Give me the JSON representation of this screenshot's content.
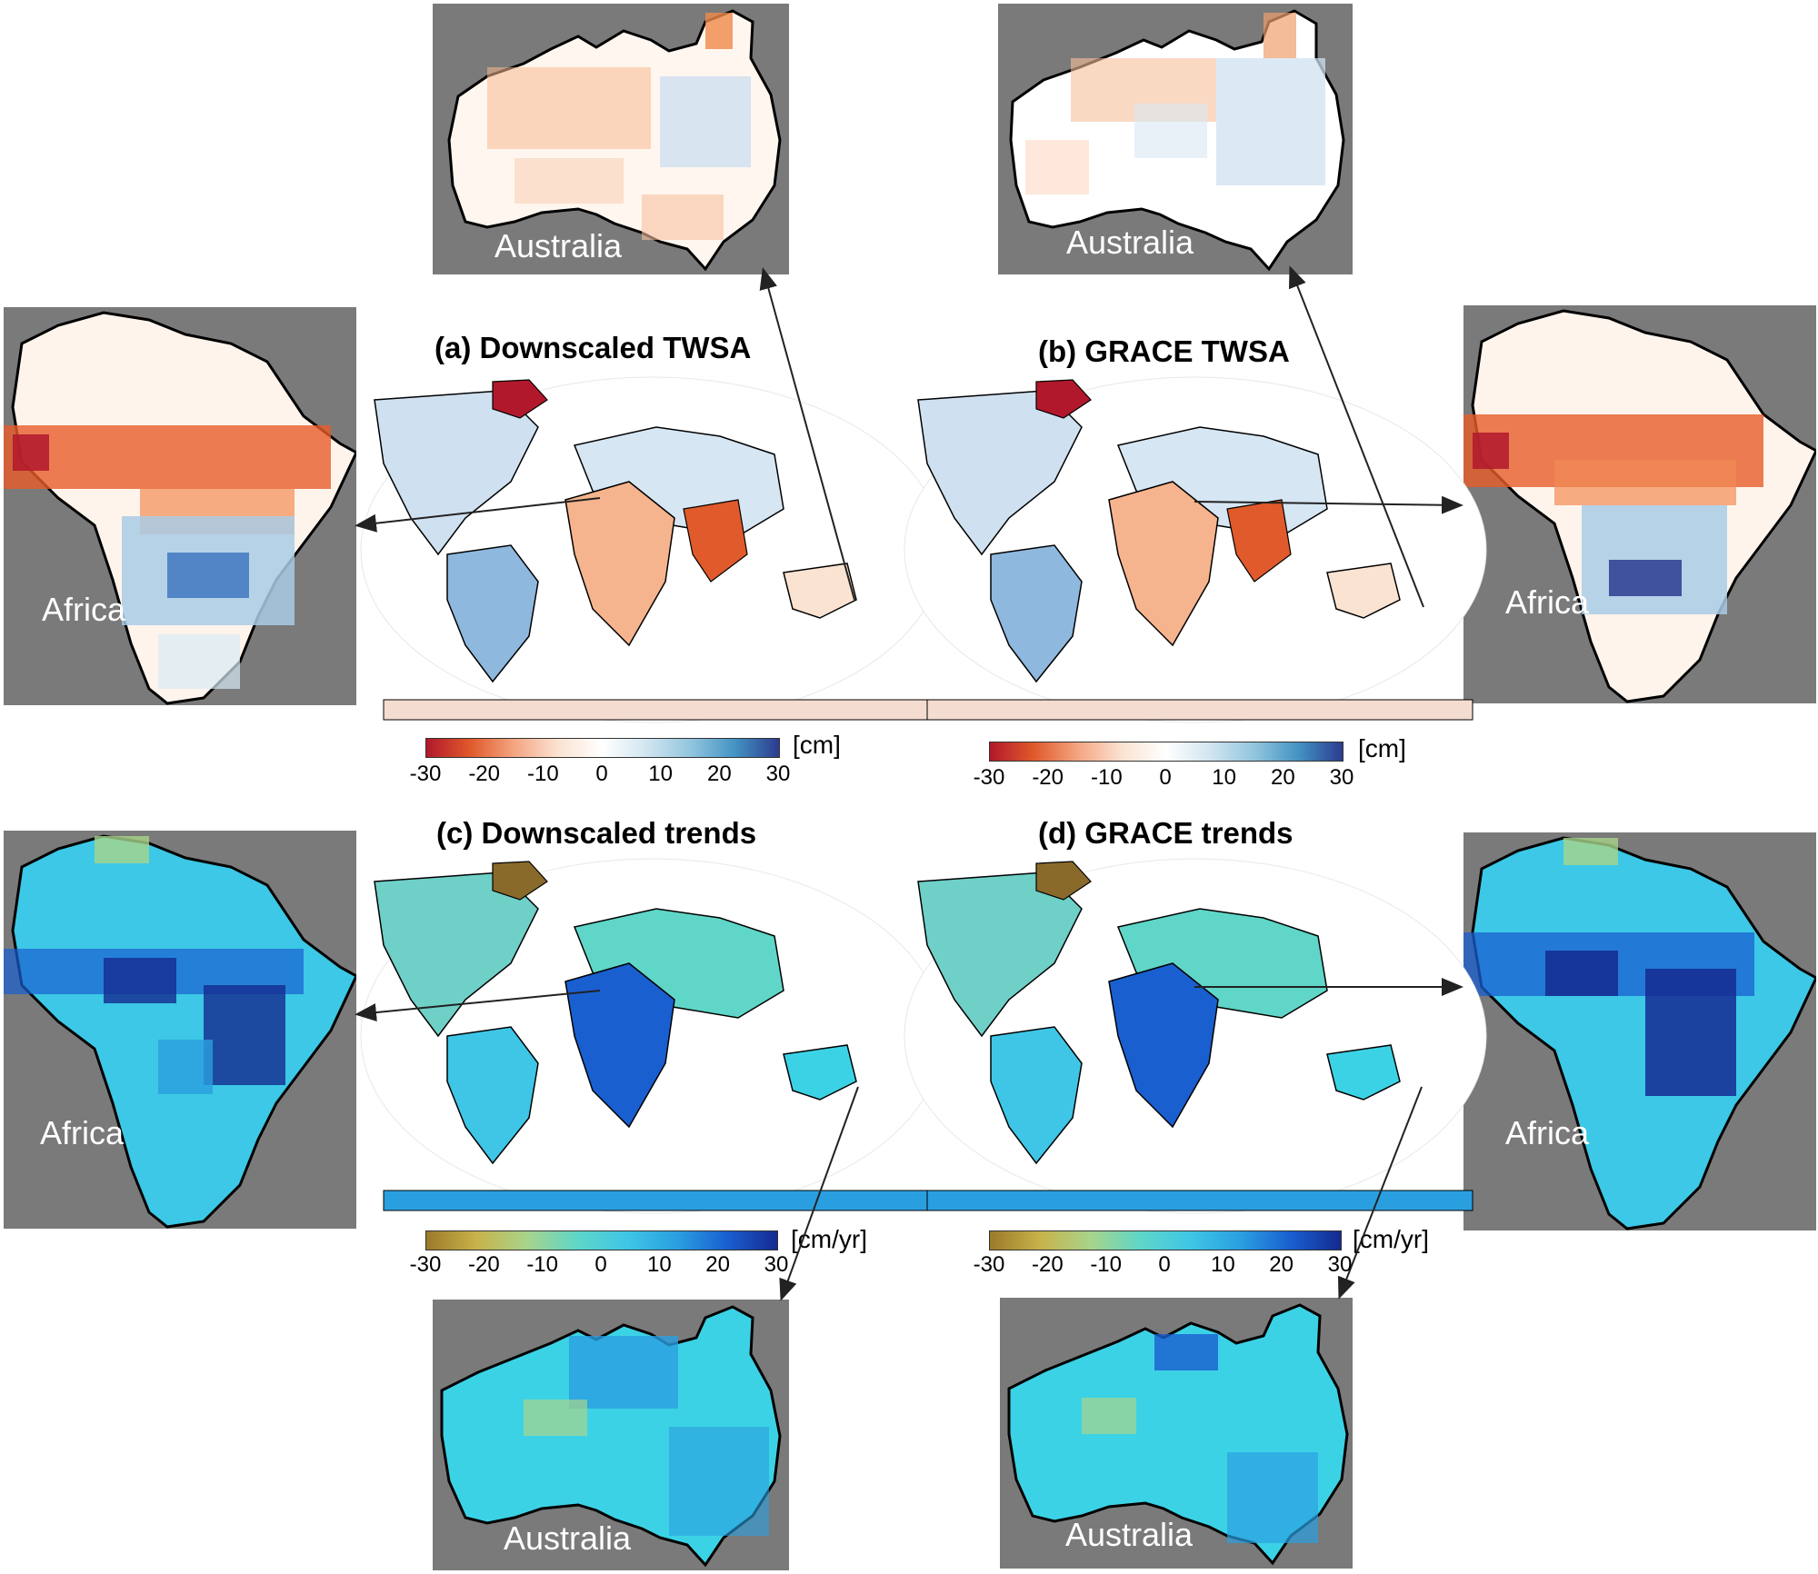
{
  "panels": [
    {
      "id": "a",
      "title": "(a) Downscaled TWSA",
      "colorbar": "twsa",
      "unit": "[cm]"
    },
    {
      "id": "b",
      "title": "(b) GRACE TWSA",
      "colorbar": "twsa",
      "unit": "[cm]"
    },
    {
      "id": "c",
      "title": "(c) Downscaled trends",
      "colorbar": "trend",
      "unit": "[cm/yr]"
    },
    {
      "id": "d",
      "title": "(d) GRACE trends",
      "colorbar": "trend",
      "unit": "[cm/yr]"
    }
  ],
  "colorbar_ticks": [
    "-30",
    "-20",
    "-10",
    "0",
    "10",
    "20",
    "30"
  ],
  "colormaps": {
    "twsa": [
      "#b2182b",
      "#e05a2b",
      "#f4a582",
      "#fbe3d2",
      "#ffffff",
      "#d1e5f0",
      "#92c5de",
      "#4393c3",
      "#2c3b8f"
    ],
    "trend": [
      "#9b7a2a",
      "#c8b24a",
      "#a8d48a",
      "#5fd6c8",
      "#3fc6e6",
      "#2a9fe0",
      "#1a5fd0",
      "#142a90"
    ]
  },
  "insets": [
    {
      "id": "aus-a",
      "region": "australia",
      "label": "Australia",
      "scheme": "twsa"
    },
    {
      "id": "aus-b",
      "region": "australia",
      "label": "Australia",
      "scheme": "twsa"
    },
    {
      "id": "afr-a",
      "region": "africa",
      "label": "Africa",
      "scheme": "twsa"
    },
    {
      "id": "afr-b",
      "region": "africa",
      "label": "Africa",
      "scheme": "twsa"
    },
    {
      "id": "afr-c",
      "region": "africa",
      "label": "Africa",
      "scheme": "trend"
    },
    {
      "id": "afr-d",
      "region": "africa",
      "label": "Africa",
      "scheme": "trend"
    },
    {
      "id": "aus-c",
      "region": "australia",
      "label": "Australia",
      "scheme": "trend"
    },
    {
      "id": "aus-d",
      "region": "australia",
      "label": "Australia",
      "scheme": "trend"
    }
  ]
}
